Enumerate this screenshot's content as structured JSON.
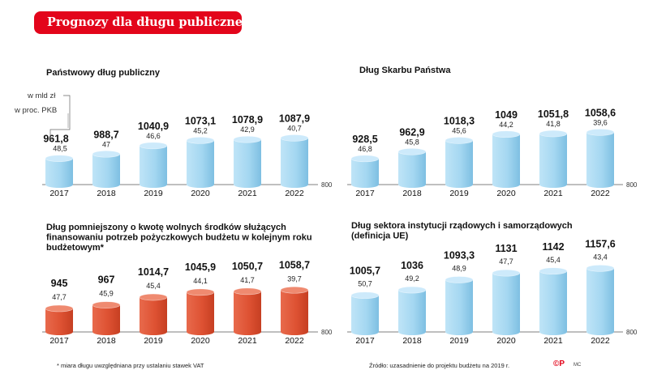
{
  "header": {
    "title": "Prognozy dla długu publicznego"
  },
  "legend": {
    "unit_label": "w mld zł",
    "percent_label": "w proc. PKB"
  },
  "footnote": "* miara długu uwzględniana   przy ustalaniu stawek VAT",
  "source": "Źródło: uzasadnienie do projektu budżetu na 2019 r.",
  "logo": "©P",
  "author": "MC",
  "colors": {
    "accent": "#e3051b",
    "blue_bar": "#9dd3ef",
    "red_bar": "#e05536"
  },
  "chart_data": [
    {
      "type": "bar",
      "style": "cylinder",
      "color": "blue",
      "title": "Państwowy dług publiczny",
      "categories": [
        "2017",
        "2018",
        "2019",
        "2020",
        "2021",
        "2022"
      ],
      "values": [
        961.8,
        988.7,
        1040.9,
        1073.1,
        1078.9,
        1087.9
      ],
      "value_labels": [
        "961,8",
        "988,7",
        "1040,9",
        "1073,1",
        "1078,9",
        "1087,9"
      ],
      "pct_gdp": [
        "48,5",
        "47",
        "46,6",
        "45,2",
        "42,9",
        "40,7"
      ],
      "baseline": 800,
      "baseline_label": "800",
      "ylabel": "w mld zł"
    },
    {
      "type": "bar",
      "style": "cylinder",
      "color": "blue",
      "title": "Dług Skarbu Państwa",
      "categories": [
        "2017",
        "2018",
        "2019",
        "2020",
        "2021",
        "2022"
      ],
      "values": [
        928.5,
        962.9,
        1018.3,
        1049,
        1051.8,
        1058.6
      ],
      "value_labels": [
        "928,5",
        "962,9",
        "1018,3",
        "1049",
        "1051,8",
        "1058,6"
      ],
      "pct_gdp": [
        "46,8",
        "45,8",
        "45,6",
        "44,2",
        "41,8",
        "39,6"
      ],
      "baseline": 800,
      "baseline_label": "800",
      "ylabel": "w mld zł"
    },
    {
      "type": "bar",
      "style": "cylinder",
      "color": "red",
      "title": "Dług pomniejszony o kwotę wolnych środków służących finansowaniu potrzeb pożyczkowych budżetu w kolejnym roku budżetowym*",
      "title_lines": [
        "Dług pomniejszony o kwotę wolnych środków służących",
        "finansowaniu potrzeb pożyczkowych budżetu w kolejnym roku",
        "budżetowym*"
      ],
      "categories": [
        "2017",
        "2018",
        "2019",
        "2020",
        "2021",
        "2022"
      ],
      "values": [
        945,
        967,
        1014.7,
        1045.9,
        1050.7,
        1058.7
      ],
      "value_labels": [
        "945",
        "967",
        "1014,7",
        "1045,9",
        "1050,7",
        "1058,7"
      ],
      "pct_gdp": [
        "47,7",
        "45,9",
        "45,4",
        "44,1",
        "41,7",
        "39,7"
      ],
      "baseline": 800,
      "baseline_label": "800",
      "ylabel": "w mld zł"
    },
    {
      "type": "bar",
      "style": "cylinder",
      "color": "blue",
      "title": "Dług sektora instytucji rządowych i samorządowych (definicja UE)",
      "title_lines": [
        "Dług sektora instytucji rządowych i samorządowych",
        "(definicja UE)"
      ],
      "categories": [
        "2017",
        "2018",
        "2019",
        "2020",
        "2021",
        "2022"
      ],
      "values": [
        1005.7,
        1036,
        1093.3,
        1131,
        1142,
        1157.6
      ],
      "value_labels": [
        "1005,7",
        "1036",
        "1093,3",
        "1131",
        "1142",
        "1157,6"
      ],
      "pct_gdp": [
        "50,7",
        "49,2",
        "48,9",
        "47,7",
        "45,4",
        "43,4"
      ],
      "baseline": 800,
      "baseline_label": "800",
      "ylabel": "w mld zł"
    }
  ]
}
